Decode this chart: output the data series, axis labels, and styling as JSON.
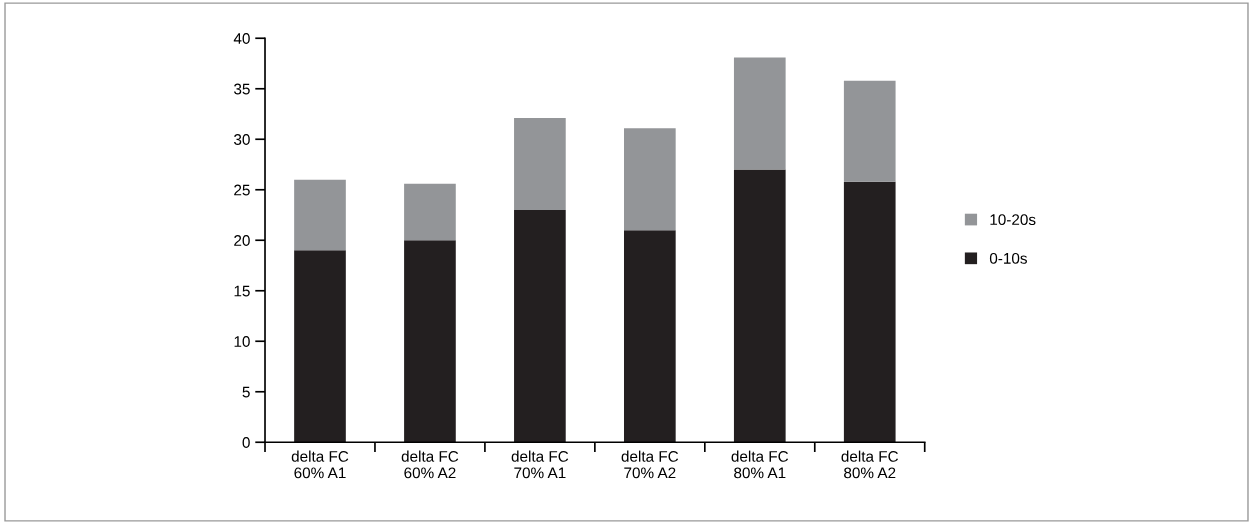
{
  "chart_data": {
    "type": "bar",
    "stacked": true,
    "categories": [
      "delta FC\n60% A1",
      "delta FC\n60% A2",
      "delta FC\n70% A1",
      "delta FC\n70% A2",
      "delta FC\n80% A1",
      "delta FC\n80% A2"
    ],
    "series": [
      {
        "name": "0-10s",
        "color": "#231f20",
        "values": [
          19.0,
          20.0,
          23.0,
          21.0,
          27.0,
          25.8
        ]
      },
      {
        "name": "10-20s",
        "color": "#939598",
        "values": [
          7.0,
          5.6,
          9.1,
          10.1,
          11.1,
          10.0
        ]
      }
    ],
    "ylim": [
      0,
      40
    ],
    "yticks": [
      0,
      5,
      10,
      15,
      20,
      25,
      30,
      35,
      40
    ],
    "grid": false,
    "legend": "right"
  }
}
